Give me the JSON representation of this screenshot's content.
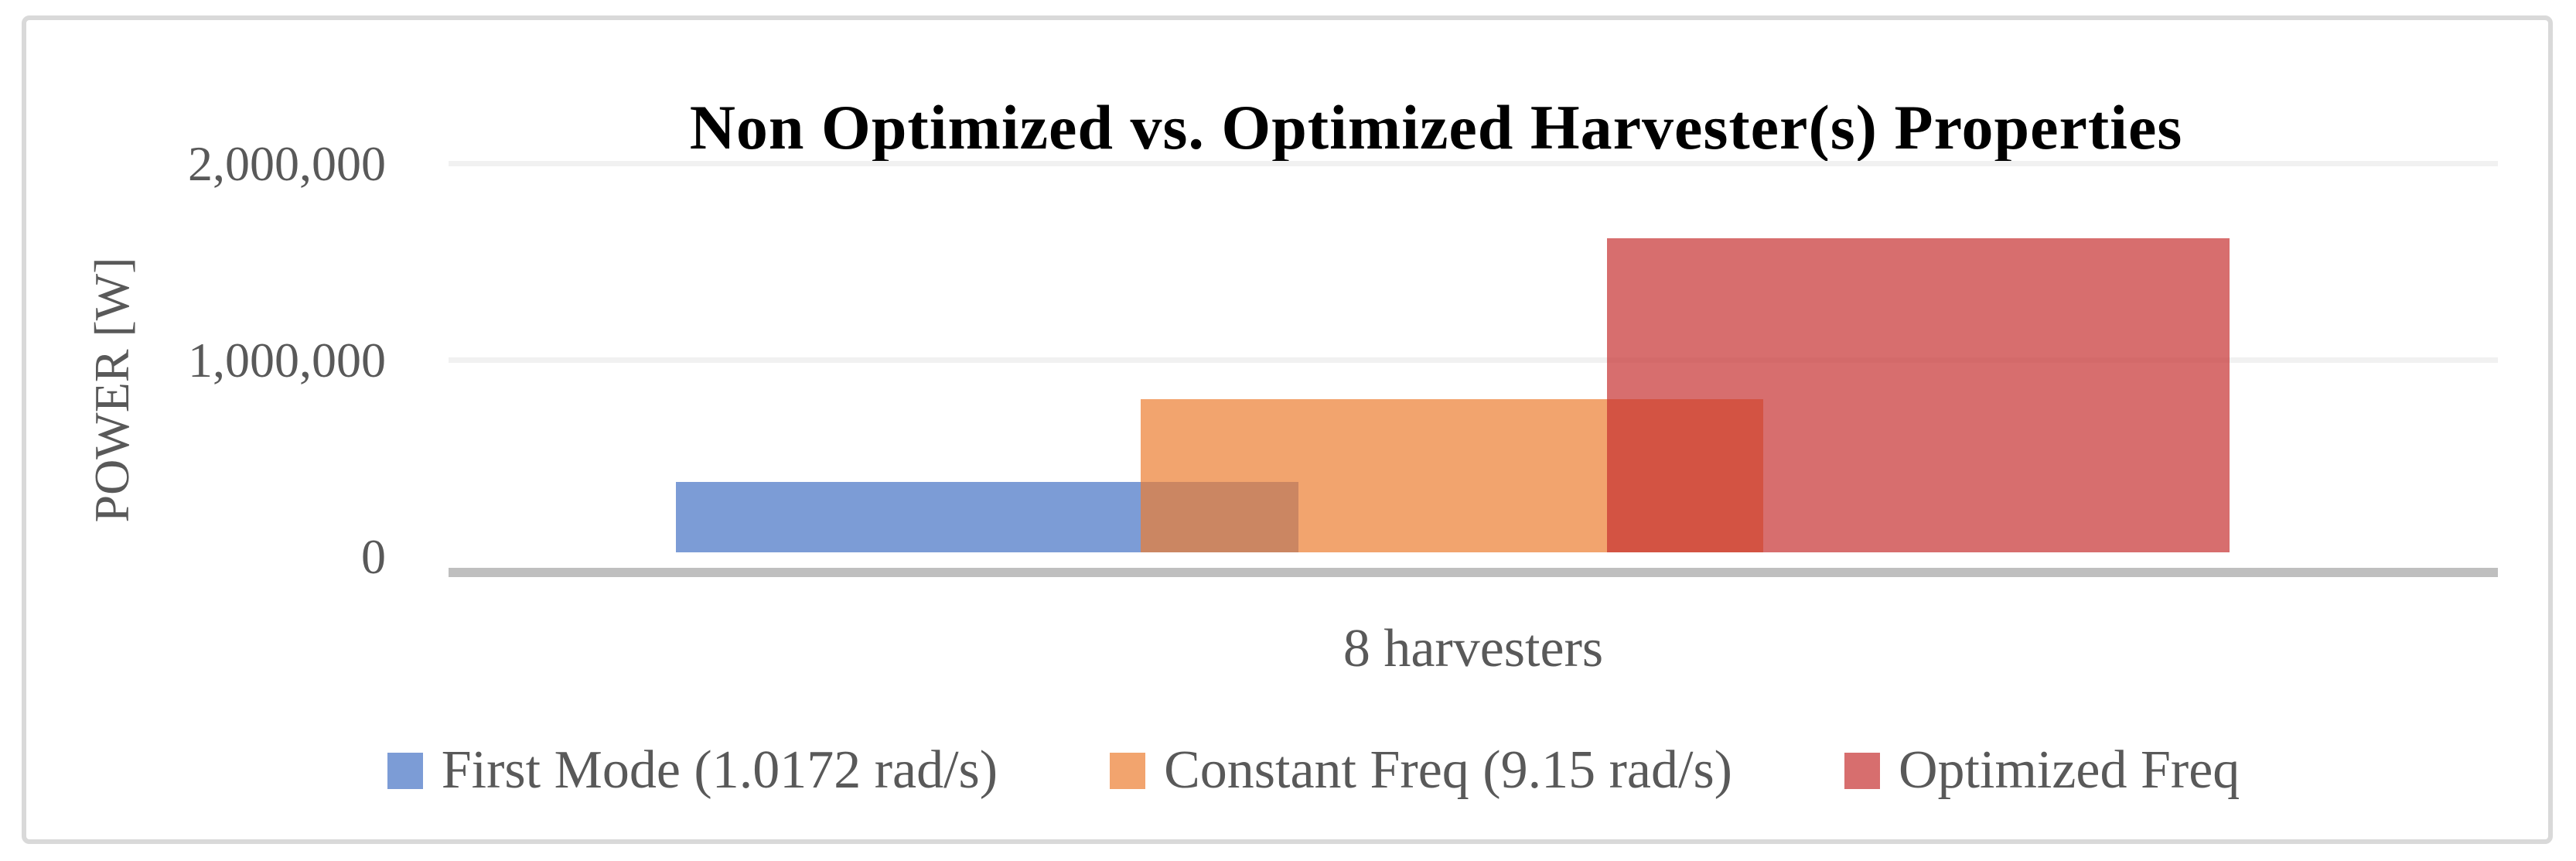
{
  "chart_data": {
    "type": "bar",
    "title": "Non Optimized vs. Optimized Harvester(s) Properties",
    "categories": [
      "8 harvesters"
    ],
    "series": [
      {
        "name": "First Mode (1.0172 rad/s)",
        "color": "#4472C4",
        "values": [
          380000
        ]
      },
      {
        "name": "Constant Freq (9.15 rad/s)",
        "color": "#ED7D31",
        "values": [
          800000
        ]
      },
      {
        "name": "Optimized Freq",
        "color": "#C63030",
        "values": [
          1620000
        ]
      }
    ],
    "xlabel": "",
    "ylabel": "POWER [W]",
    "ylim": [
      0,
      2000000
    ],
    "yticks": [
      "0",
      "1,000,000",
      "2,000,000"
    ],
    "ytick_values": [
      0,
      1000000,
      2000000
    ],
    "bar_opacity": 0.7,
    "bars_overlap": true,
    "grid": true,
    "gridline_color": "#F1F1F1",
    "axis_line_color": "#BFBFBF",
    "frame_border_color": "#D9D9D9",
    "text_color": "#595959",
    "legend_position": "bottom"
  }
}
